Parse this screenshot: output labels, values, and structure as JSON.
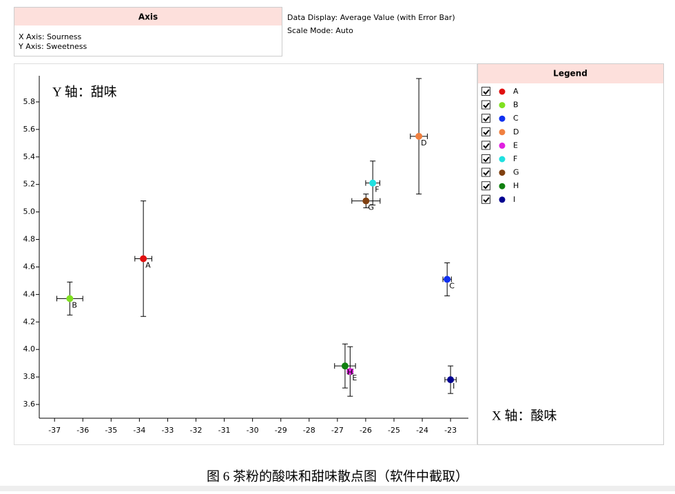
{
  "axis_panel": {
    "title": "Axis",
    "lines": [
      "X Axis: Sourness",
      "Y Axis: Sweetness"
    ]
  },
  "display_info": [
    "Data Display: Average Value (with Error Bar)",
    "Scale Mode:  Auto"
  ],
  "legend_title": "Legend",
  "caption": "图 6  茶粉的酸味和甜味散点图（软件中截取）",
  "chart_data": {
    "type": "scatter",
    "y_annotation": "Y 轴：甜味",
    "x_annotation": "X 轴：酸味",
    "xlim": [
      -37.54,
      -22.37
    ],
    "ylim": [
      3.5,
      5.99
    ],
    "xticks": [
      -37,
      -36,
      -35,
      -34,
      -33,
      -32,
      -31,
      -30,
      -29,
      -28,
      -27,
      -26,
      -25,
      -24,
      -23
    ],
    "yticks": [
      3.6,
      3.8,
      {
        "value": 4,
        "label": "4.0"
      },
      4.2,
      4.4,
      4.6,
      4.8,
      {
        "value": 5,
        "label": "5.0"
      },
      5.2,
      5.4,
      5.6,
      5.8
    ],
    "series": [
      {
        "name": "A",
        "color": "#e01010",
        "x": [
          -33.86
        ],
        "values": [
          4.66
        ],
        "x_error": [
          0.3
        ],
        "y_error": [
          0.42
        ]
      },
      {
        "name": "B",
        "color": "#80e020",
        "x": [
          -36.46
        ],
        "values": [
          4.37
        ],
        "x_error": [
          0.46
        ],
        "y_error": [
          0.12
        ]
      },
      {
        "name": "C",
        "color": "#1030f0",
        "x": [
          -23.12
        ],
        "values": [
          4.51
        ],
        "x_error": [
          0.15
        ],
        "y_error": [
          0.12
        ]
      },
      {
        "name": "D",
        "color": "#f08040",
        "x": [
          -24.12
        ],
        "values": [
          5.55
        ],
        "x_error": [
          0.3
        ],
        "y_error": [
          0.42
        ]
      },
      {
        "name": "E",
        "color": "#e020e0",
        "x": [
          -26.55
        ],
        "values": [
          3.84
        ],
        "x_error": [
          0.1
        ],
        "y_error": [
          0.18
        ]
      },
      {
        "name": "F",
        "color": "#20e0e0",
        "x": [
          -25.75
        ],
        "values": [
          5.21
        ],
        "x_error": [
          0.25
        ],
        "y_error": [
          0.16
        ]
      },
      {
        "name": "G",
        "color": "#804010",
        "x": [
          -25.99
        ],
        "values": [
          5.08
        ],
        "x_error": [
          0.5
        ],
        "y_error": [
          0.05
        ]
      },
      {
        "name": "H",
        "color": "#108010",
        "x": [
          -26.73
        ],
        "values": [
          3.88
        ],
        "x_error": [
          0.37
        ],
        "y_error": [
          0.16
        ]
      },
      {
        "name": "I",
        "color": "#000090",
        "x": [
          -23.0
        ],
        "values": [
          3.78
        ],
        "x_error": [
          0.2
        ],
        "y_error": [
          0.1
        ]
      }
    ]
  }
}
